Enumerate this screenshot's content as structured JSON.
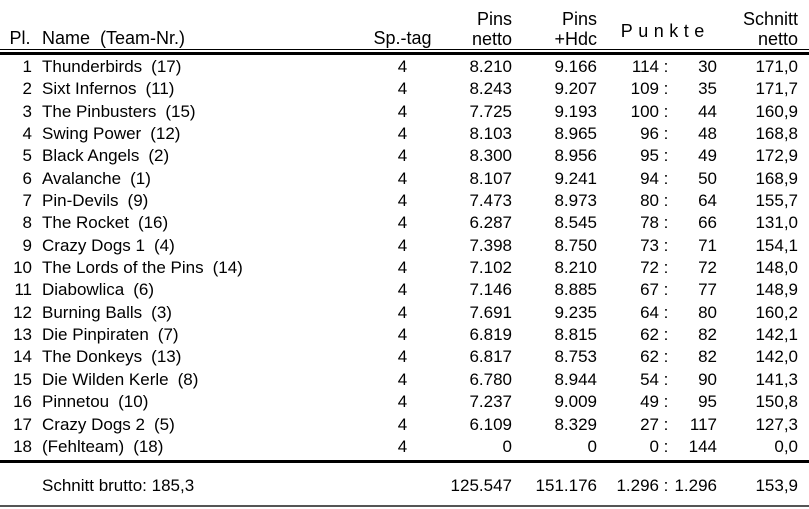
{
  "table": {
    "headers": {
      "pl": "Pl.",
      "name": "Name  (Team-Nr.)",
      "sptag": "Sp.-tag",
      "pins_netto_line1": "Pins",
      "pins_netto_line2": "netto",
      "pins_hdc_line1": "Pins",
      "pins_hdc_line2": "+Hdc",
      "punkte": "Punkte",
      "schnitt_line1": "Schnitt",
      "schnitt_line2": "netto"
    },
    "punkte_separator": ":",
    "rows": [
      {
        "pl": "1",
        "name": "Thunderbirds",
        "team": "(17)",
        "sptag": "4",
        "netto": "8.210",
        "hdc": "9.166",
        "pf": "114",
        "pa": "30",
        "schnitt": "171,0"
      },
      {
        "pl": "2",
        "name": "Sixt Infernos",
        "team": "(11)",
        "sptag": "4",
        "netto": "8.243",
        "hdc": "9.207",
        "pf": "109",
        "pa": "35",
        "schnitt": "171,7"
      },
      {
        "pl": "3",
        "name": "The Pinbusters",
        "team": "(15)",
        "sptag": "4",
        "netto": "7.725",
        "hdc": "9.193",
        "pf": "100",
        "pa": "44",
        "schnitt": "160,9"
      },
      {
        "pl": "4",
        "name": "Swing Power",
        "team": "(12)",
        "sptag": "4",
        "netto": "8.103",
        "hdc": "8.965",
        "pf": "96",
        "pa": "48",
        "schnitt": "168,8"
      },
      {
        "pl": "5",
        "name": "Black Angels",
        "team": "(2)",
        "sptag": "4",
        "netto": "8.300",
        "hdc": "8.956",
        "pf": "95",
        "pa": "49",
        "schnitt": "172,9"
      },
      {
        "pl": "6",
        "name": "Avalanche",
        "team": "(1)",
        "sptag": "4",
        "netto": "8.107",
        "hdc": "9.241",
        "pf": "94",
        "pa": "50",
        "schnitt": "168,9"
      },
      {
        "pl": "7",
        "name": "Pin-Devils",
        "team": "(9)",
        "sptag": "4",
        "netto": "7.473",
        "hdc": "8.973",
        "pf": "80",
        "pa": "64",
        "schnitt": "155,7"
      },
      {
        "pl": "8",
        "name": "The Rocket",
        "team": "(16)",
        "sptag": "4",
        "netto": "6.287",
        "hdc": "8.545",
        "pf": "78",
        "pa": "66",
        "schnitt": "131,0"
      },
      {
        "pl": "9",
        "name": "Crazy Dogs 1",
        "team": "(4)",
        "sptag": "4",
        "netto": "7.398",
        "hdc": "8.750",
        "pf": "73",
        "pa": "71",
        "schnitt": "154,1"
      },
      {
        "pl": "10",
        "name": "The Lords of the Pins",
        "team": "(14)",
        "sptag": "4",
        "netto": "7.102",
        "hdc": "8.210",
        "pf": "72",
        "pa": "72",
        "schnitt": "148,0"
      },
      {
        "pl": "11",
        "name": "Diabowlica",
        "team": "(6)",
        "sptag": "4",
        "netto": "7.146",
        "hdc": "8.885",
        "pf": "67",
        "pa": "77",
        "schnitt": "148,9"
      },
      {
        "pl": "12",
        "name": "Burning Balls",
        "team": "(3)",
        "sptag": "4",
        "netto": "7.691",
        "hdc": "9.235",
        "pf": "64",
        "pa": "80",
        "schnitt": "160,2"
      },
      {
        "pl": "13",
        "name": "Die Pinpiraten",
        "team": "(7)",
        "sptag": "4",
        "netto": "6.819",
        "hdc": "8.815",
        "pf": "62",
        "pa": "82",
        "schnitt": "142,1"
      },
      {
        "pl": "14",
        "name": "The Donkeys",
        "team": "(13)",
        "sptag": "4",
        "netto": "6.817",
        "hdc": "8.753",
        "pf": "62",
        "pa": "82",
        "schnitt": "142,0"
      },
      {
        "pl": "15",
        "name": "Die Wilden Kerle",
        "team": "(8)",
        "sptag": "4",
        "netto": "6.780",
        "hdc": "8.944",
        "pf": "54",
        "pa": "90",
        "schnitt": "141,3"
      },
      {
        "pl": "16",
        "name": "Pinnetou",
        "team": "(10)",
        "sptag": "4",
        "netto": "7.237",
        "hdc": "9.009",
        "pf": "49",
        "pa": "95",
        "schnitt": "150,8"
      },
      {
        "pl": "17",
        "name": "Crazy Dogs 2",
        "team": "(5)",
        "sptag": "4",
        "netto": "6.109",
        "hdc": "8.329",
        "pf": "27",
        "pa": "117",
        "schnitt": "127,3"
      },
      {
        "pl": "18",
        "name": "(Fehlteam)",
        "team": "(18)",
        "sptag": "4",
        "netto": "0",
        "hdc": "0",
        "pf": "0",
        "pa": "144",
        "schnitt": "0,0"
      }
    ],
    "footer": {
      "label": "Schnitt brutto:",
      "schnitt_brutto": "185,3",
      "netto": "125.547",
      "hdc": "151.176",
      "pf": "1.296",
      "pa": "1.296",
      "schnitt": "153,9"
    }
  }
}
